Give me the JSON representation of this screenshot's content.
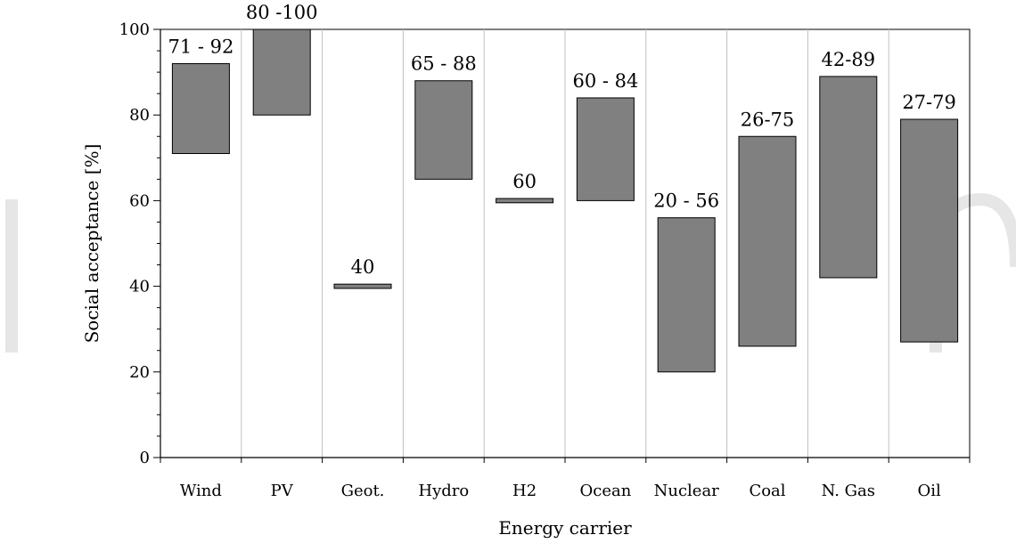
{
  "chart_data": {
    "type": "bar",
    "subtype": "floating-range",
    "title": "",
    "xlabel": "Energy carrier",
    "ylabel": "Social acceptance [%]",
    "ylim": [
      0,
      100
    ],
    "yticks": [
      "0",
      "20",
      "40",
      "60",
      "80",
      "100"
    ],
    "grid": "vertical category separators",
    "legend": "none",
    "bar_color": "#808080",
    "categories": [
      "Wind",
      "PV",
      "Geot.",
      "Hydro",
      "H2",
      "Ocean",
      "Nuclear",
      "Coal",
      "N. Gas",
      "Oil"
    ],
    "ranges": [
      {
        "low": 71,
        "high": 92
      },
      {
        "low": 80,
        "high": 100
      },
      {
        "low": 39.5,
        "high": 40.5
      },
      {
        "low": 65,
        "high": 88
      },
      {
        "low": 59.5,
        "high": 60.5
      },
      {
        "low": 60,
        "high": 84
      },
      {
        "low": 20,
        "high": 56
      },
      {
        "low": 26,
        "high": 75
      },
      {
        "low": 42,
        "high": 89
      },
      {
        "low": 27,
        "high": 79
      }
    ],
    "labels": [
      "71 - 92",
      "80 -100",
      "40",
      "65 - 88",
      "60",
      "60 - 84",
      "20 - 56",
      "26-75",
      "42-89",
      "27-79"
    ]
  },
  "watermark": {
    "color": "#e6e6e6"
  }
}
